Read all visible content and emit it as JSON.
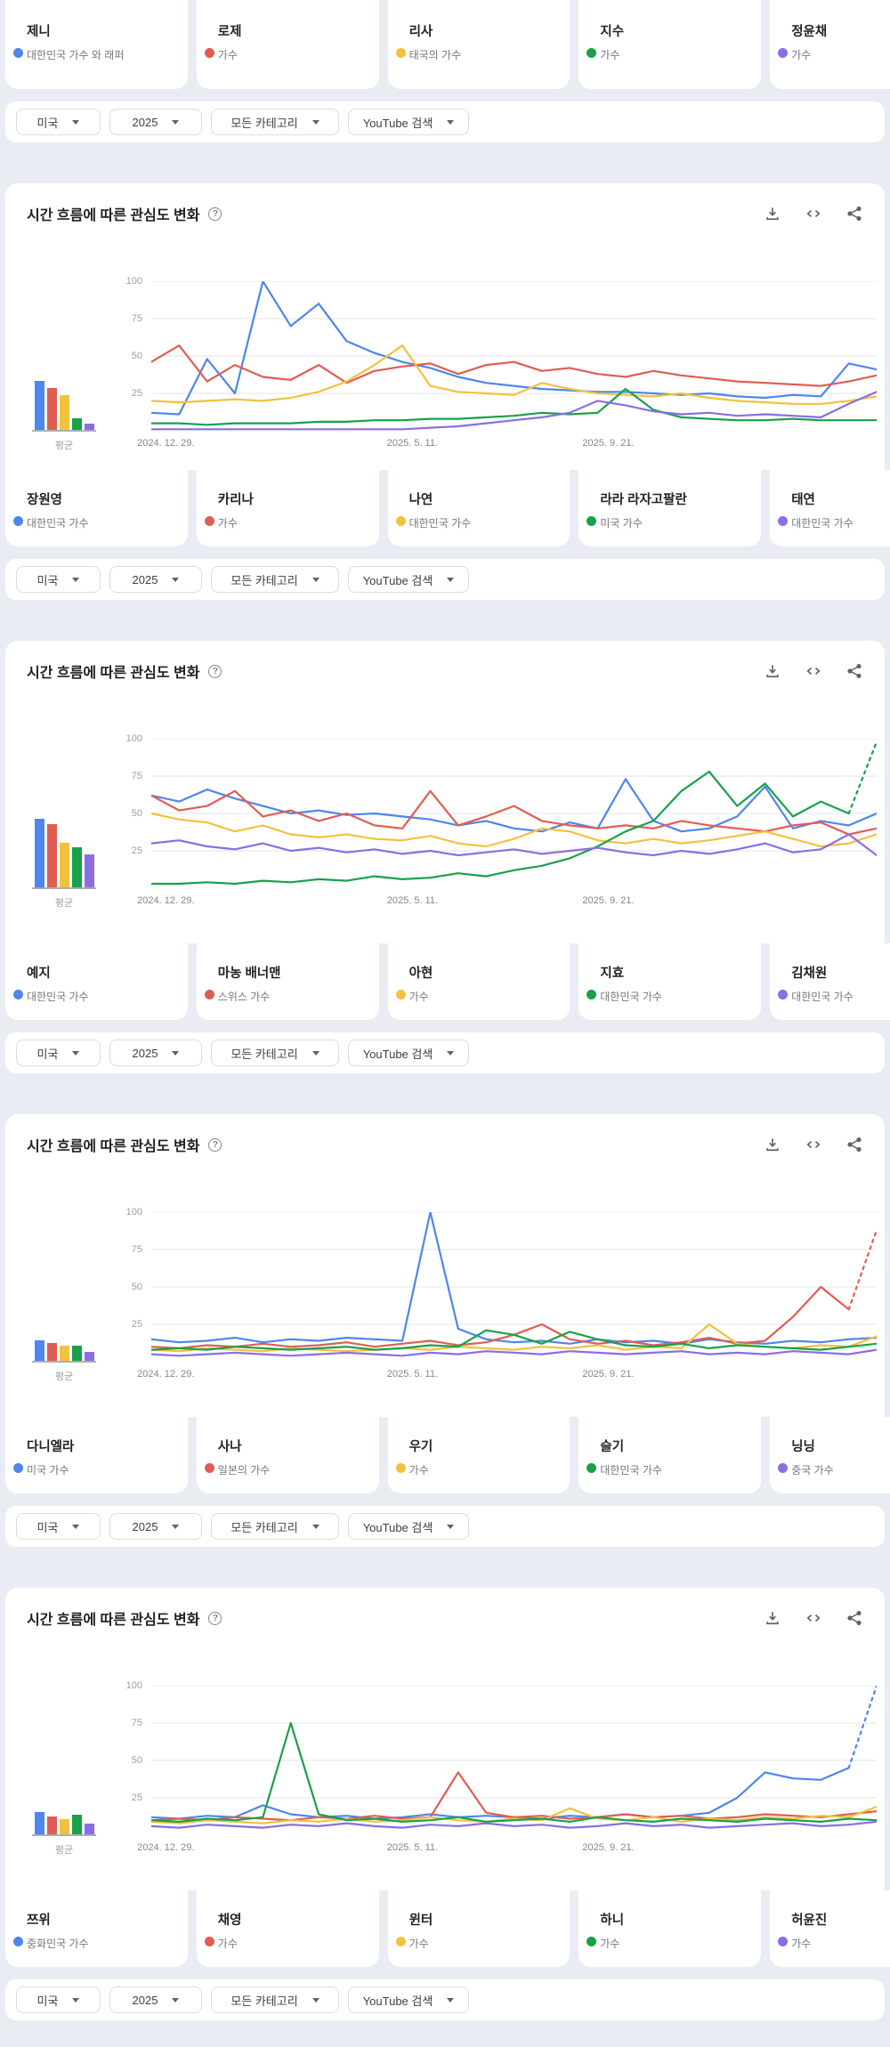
{
  "section_title": "시간 흐름에 따른 관심도 변화",
  "avg_label": "평균",
  "help_glyph": "?",
  "palette": [
    "#4d86ec",
    "#e05d52",
    "#f2c13e",
    "#18a14a",
    "#8b6de4"
  ],
  "ui_colors": {
    "background": "#e9edf3",
    "card": "#ffffff",
    "border": "#dadce0",
    "axis_text": "#9aa0a6",
    "gridline": "#e3e5e8"
  },
  "filters": {
    "region": "미국",
    "time": "2025",
    "category": "모든 카테고리",
    "search_type": "YouTube 검색"
  },
  "card_rows": [
    {
      "cards": [
        {
          "name": "제니",
          "desc": "대한민국 가수 와 래퍼"
        },
        {
          "name": "로제",
          "desc": "가수"
        },
        {
          "name": "리사",
          "desc": "태국의 가수"
        },
        {
          "name": "지수",
          "desc": "가수"
        },
        {
          "name": "정윤채",
          "desc": "가수"
        }
      ]
    },
    {
      "cards": [
        {
          "name": "장원영",
          "desc": "대한민국 가수"
        },
        {
          "name": "카리나",
          "desc": "가수"
        },
        {
          "name": "나연",
          "desc": "대한민국 가수"
        },
        {
          "name": "라라 라자고팔란",
          "desc": "미국 가수"
        },
        {
          "name": "태연",
          "desc": "대한민국 가수"
        }
      ]
    },
    {
      "cards": [
        {
          "name": "예지",
          "desc": "대한민국 가수"
        },
        {
          "name": "마농 배너맨",
          "desc": "스위스 가수"
        },
        {
          "name": "아현",
          "desc": "가수"
        },
        {
          "name": "지효",
          "desc": "대한민국 가수"
        },
        {
          "name": "김채원",
          "desc": "대한민국 가수"
        }
      ]
    },
    {
      "cards": [
        {
          "name": "다니엘라",
          "desc": "미국 가수"
        },
        {
          "name": "사나",
          "desc": "일본의 가수"
        },
        {
          "name": "우기",
          "desc": "가수"
        },
        {
          "name": "슬기",
          "desc": "대한민국 가수"
        },
        {
          "name": "닝닝",
          "desc": "중국 가수"
        }
      ]
    },
    {
      "cards": [
        {
          "name": "쯔위",
          "desc": "중화민국 가수"
        },
        {
          "name": "채영",
          "desc": "가수"
        },
        {
          "name": "윈터",
          "desc": "가수"
        },
        {
          "name": "하니",
          "desc": "가수"
        },
        {
          "name": "허윤진",
          "desc": "가수"
        }
      ]
    }
  ],
  "chart_data": [
    {
      "type": "line",
      "title": "시간 흐름에 따른 관심도 변화",
      "ylim": [
        0,
        100
      ],
      "y_ticks": [
        100,
        75,
        50,
        25
      ],
      "x_ticks": [
        {
          "label": "2024. 12. 29.",
          "pos": 0.02
        },
        {
          "label": "2025. 5. 11.",
          "pos": 0.36
        },
        {
          "label": "2025. 9. 21.",
          "pos": 0.63
        }
      ],
      "averages": [
        33,
        28,
        23,
        8,
        4
      ],
      "series": [
        {
          "name": "제니",
          "dotted_tail": false,
          "values": [
            12,
            11,
            48,
            25,
            100,
            70,
            85,
            60,
            52,
            46,
            42,
            36,
            32,
            30,
            28,
            27,
            26,
            26,
            25,
            24,
            25,
            23,
            22,
            24,
            23,
            45,
            41
          ]
        },
        {
          "name": "로제",
          "dotted_tail": false,
          "values": [
            46,
            57,
            33,
            44,
            36,
            34,
            44,
            32,
            40,
            43,
            45,
            38,
            44,
            46,
            40,
            42,
            38,
            36,
            40,
            37,
            35,
            33,
            32,
            31,
            30,
            33,
            37
          ]
        },
        {
          "name": "리사",
          "dotted_tail": false,
          "values": [
            20,
            19,
            20,
            21,
            20,
            22,
            26,
            33,
            44,
            57,
            30,
            26,
            25,
            24,
            32,
            28,
            25,
            24,
            23,
            25,
            22,
            20,
            19,
            18,
            18,
            20,
            23
          ]
        },
        {
          "name": "지수",
          "dotted_tail": false,
          "values": [
            5,
            5,
            4,
            5,
            5,
            5,
            6,
            6,
            7,
            7,
            8,
            8,
            9,
            10,
            12,
            11,
            12,
            28,
            14,
            9,
            8,
            7,
            7,
            8,
            7,
            7,
            7
          ]
        },
        {
          "name": "정윤채",
          "dotted_tail": false,
          "values": [
            1,
            1,
            1,
            1,
            1,
            1,
            1,
            1,
            1,
            1,
            2,
            3,
            5,
            7,
            9,
            12,
            20,
            17,
            13,
            11,
            12,
            10,
            11,
            10,
            9,
            18,
            26
          ]
        }
      ]
    },
    {
      "type": "line",
      "title": "시간 흐름에 따른 관심도 변화",
      "ylim": [
        0,
        100
      ],
      "y_ticks": [
        100,
        75,
        50,
        25
      ],
      "x_ticks": [
        {
          "label": "2024. 12. 29.",
          "pos": 0.02
        },
        {
          "label": "2025. 5. 11.",
          "pos": 0.36
        },
        {
          "label": "2025. 9. 21.",
          "pos": 0.63
        }
      ],
      "averages": [
        46,
        42,
        30,
        27,
        22
      ],
      "series": [
        {
          "name": "장원영",
          "dotted_tail": false,
          "values": [
            62,
            58,
            66,
            60,
            55,
            50,
            52,
            49,
            50,
            48,
            46,
            42,
            45,
            40,
            38,
            44,
            40,
            73,
            45,
            38,
            40,
            48,
            68,
            40,
            45,
            42,
            50
          ]
        },
        {
          "name": "카리나",
          "dotted_tail": false,
          "values": [
            62,
            52,
            55,
            65,
            48,
            52,
            45,
            50,
            42,
            40,
            65,
            42,
            48,
            55,
            45,
            42,
            40,
            42,
            40,
            45,
            42,
            40,
            38,
            42,
            44,
            36,
            40
          ]
        },
        {
          "name": "나연",
          "dotted_tail": false,
          "values": [
            50,
            46,
            44,
            38,
            42,
            36,
            34,
            36,
            33,
            32,
            35,
            30,
            28,
            33,
            40,
            38,
            32,
            30,
            33,
            30,
            32,
            35,
            38,
            33,
            28,
            30,
            36
          ]
        },
        {
          "name": "라라 라자고팔란",
          "dotted_tail": true,
          "values": [
            3,
            3,
            4,
            3,
            5,
            4,
            6,
            5,
            8,
            6,
            7,
            10,
            8,
            12,
            15,
            20,
            28,
            38,
            45,
            65,
            78,
            55,
            70,
            48,
            58,
            50,
            98
          ]
        },
        {
          "name": "태연",
          "dotted_tail": false,
          "values": [
            30,
            32,
            28,
            26,
            30,
            25,
            27,
            24,
            26,
            23,
            25,
            22,
            24,
            26,
            23,
            25,
            27,
            24,
            22,
            25,
            23,
            26,
            30,
            24,
            26,
            36,
            22
          ]
        }
      ]
    },
    {
      "type": "line",
      "title": "시간 흐름에 따른 관심도 변화",
      "ylim": [
        0,
        100
      ],
      "y_ticks": [
        100,
        75,
        50,
        25
      ],
      "x_ticks": [
        {
          "label": "2024. 12. 29.",
          "pos": 0.02
        },
        {
          "label": "2025. 5. 11.",
          "pos": 0.36
        },
        {
          "label": "2025. 9. 21.",
          "pos": 0.63
        }
      ],
      "averages": [
        14,
        12,
        10,
        10,
        6
      ],
      "series": [
        {
          "name": "예지",
          "dotted_tail": false,
          "values": [
            15,
            13,
            14,
            16,
            13,
            15,
            14,
            16,
            15,
            14,
            100,
            22,
            15,
            13,
            14,
            12,
            15,
            13,
            14,
            12,
            15,
            13,
            12,
            14,
            13,
            15,
            16
          ]
        },
        {
          "name": "마농 배너맨",
          "dotted_tail": true,
          "values": [
            10,
            9,
            11,
            10,
            12,
            10,
            11,
            13,
            10,
            12,
            14,
            11,
            13,
            18,
            25,
            15,
            12,
            14,
            11,
            13,
            16,
            12,
            14,
            30,
            50,
            35,
            88
          ]
        },
        {
          "name": "아현",
          "dotted_tail": false,
          "values": [
            8,
            7,
            9,
            8,
            7,
            9,
            8,
            7,
            8,
            9,
            8,
            10,
            9,
            8,
            10,
            9,
            11,
            8,
            10,
            9,
            25,
            12,
            10,
            9,
            11,
            10,
            17
          ]
        },
        {
          "name": "지효",
          "dotted_tail": false,
          "values": [
            8,
            9,
            8,
            10,
            9,
            8,
            9,
            10,
            8,
            9,
            11,
            10,
            21,
            18,
            12,
            20,
            15,
            11,
            10,
            12,
            9,
            11,
            10,
            9,
            8,
            10,
            12
          ]
        },
        {
          "name": "김채원",
          "dotted_tail": false,
          "values": [
            5,
            4,
            5,
            6,
            5,
            4,
            5,
            6,
            5,
            4,
            6,
            5,
            7,
            6,
            5,
            7,
            6,
            5,
            6,
            7,
            5,
            6,
            5,
            7,
            6,
            5,
            8
          ]
        }
      ]
    },
    {
      "type": "line",
      "title": "시간 흐름에 따른 관심도 변화",
      "ylim": [
        0,
        100
      ],
      "y_ticks": [
        100,
        75,
        50,
        25
      ],
      "x_ticks": [
        {
          "label": "2024. 12. 29.",
          "pos": 0.02
        },
        {
          "label": "2025. 5. 11.",
          "pos": 0.36
        },
        {
          "label": "2025. 9. 21.",
          "pos": 0.63
        }
      ],
      "averages": [
        15,
        12,
        10,
        13,
        7
      ],
      "series": [
        {
          "name": "다니엘라",
          "dotted_tail": true,
          "values": [
            12,
            11,
            13,
            12,
            20,
            14,
            12,
            13,
            11,
            12,
            14,
            12,
            13,
            12,
            11,
            13,
            12,
            14,
            12,
            13,
            15,
            25,
            42,
            38,
            37,
            45,
            100
          ]
        },
        {
          "name": "사나",
          "dotted_tail": false,
          "values": [
            10,
            11,
            10,
            12,
            11,
            10,
            12,
            11,
            13,
            11,
            12,
            42,
            15,
            12,
            13,
            11,
            12,
            14,
            12,
            13,
            11,
            12,
            14,
            13,
            12,
            14,
            16
          ]
        },
        {
          "name": "우기",
          "dotted_tail": false,
          "values": [
            9,
            8,
            10,
            9,
            8,
            10,
            9,
            11,
            9,
            10,
            12,
            10,
            9,
            11,
            10,
            18,
            11,
            10,
            12,
            9,
            11,
            10,
            12,
            11,
            13,
            12,
            19
          ]
        },
        {
          "name": "슬기",
          "dotted_tail": false,
          "values": [
            10,
            9,
            11,
            10,
            12,
            75,
            14,
            10,
            11,
            9,
            10,
            12,
            9,
            10,
            11,
            9,
            12,
            10,
            9,
            11,
            10,
            9,
            11,
            10,
            9,
            11,
            10
          ]
        },
        {
          "name": "닝닝",
          "dotted_tail": false,
          "values": [
            6,
            5,
            7,
            6,
            5,
            7,
            6,
            8,
            6,
            5,
            7,
            6,
            8,
            6,
            7,
            5,
            6,
            8,
            6,
            7,
            5,
            6,
            7,
            8,
            6,
            7,
            9
          ]
        }
      ]
    }
  ]
}
